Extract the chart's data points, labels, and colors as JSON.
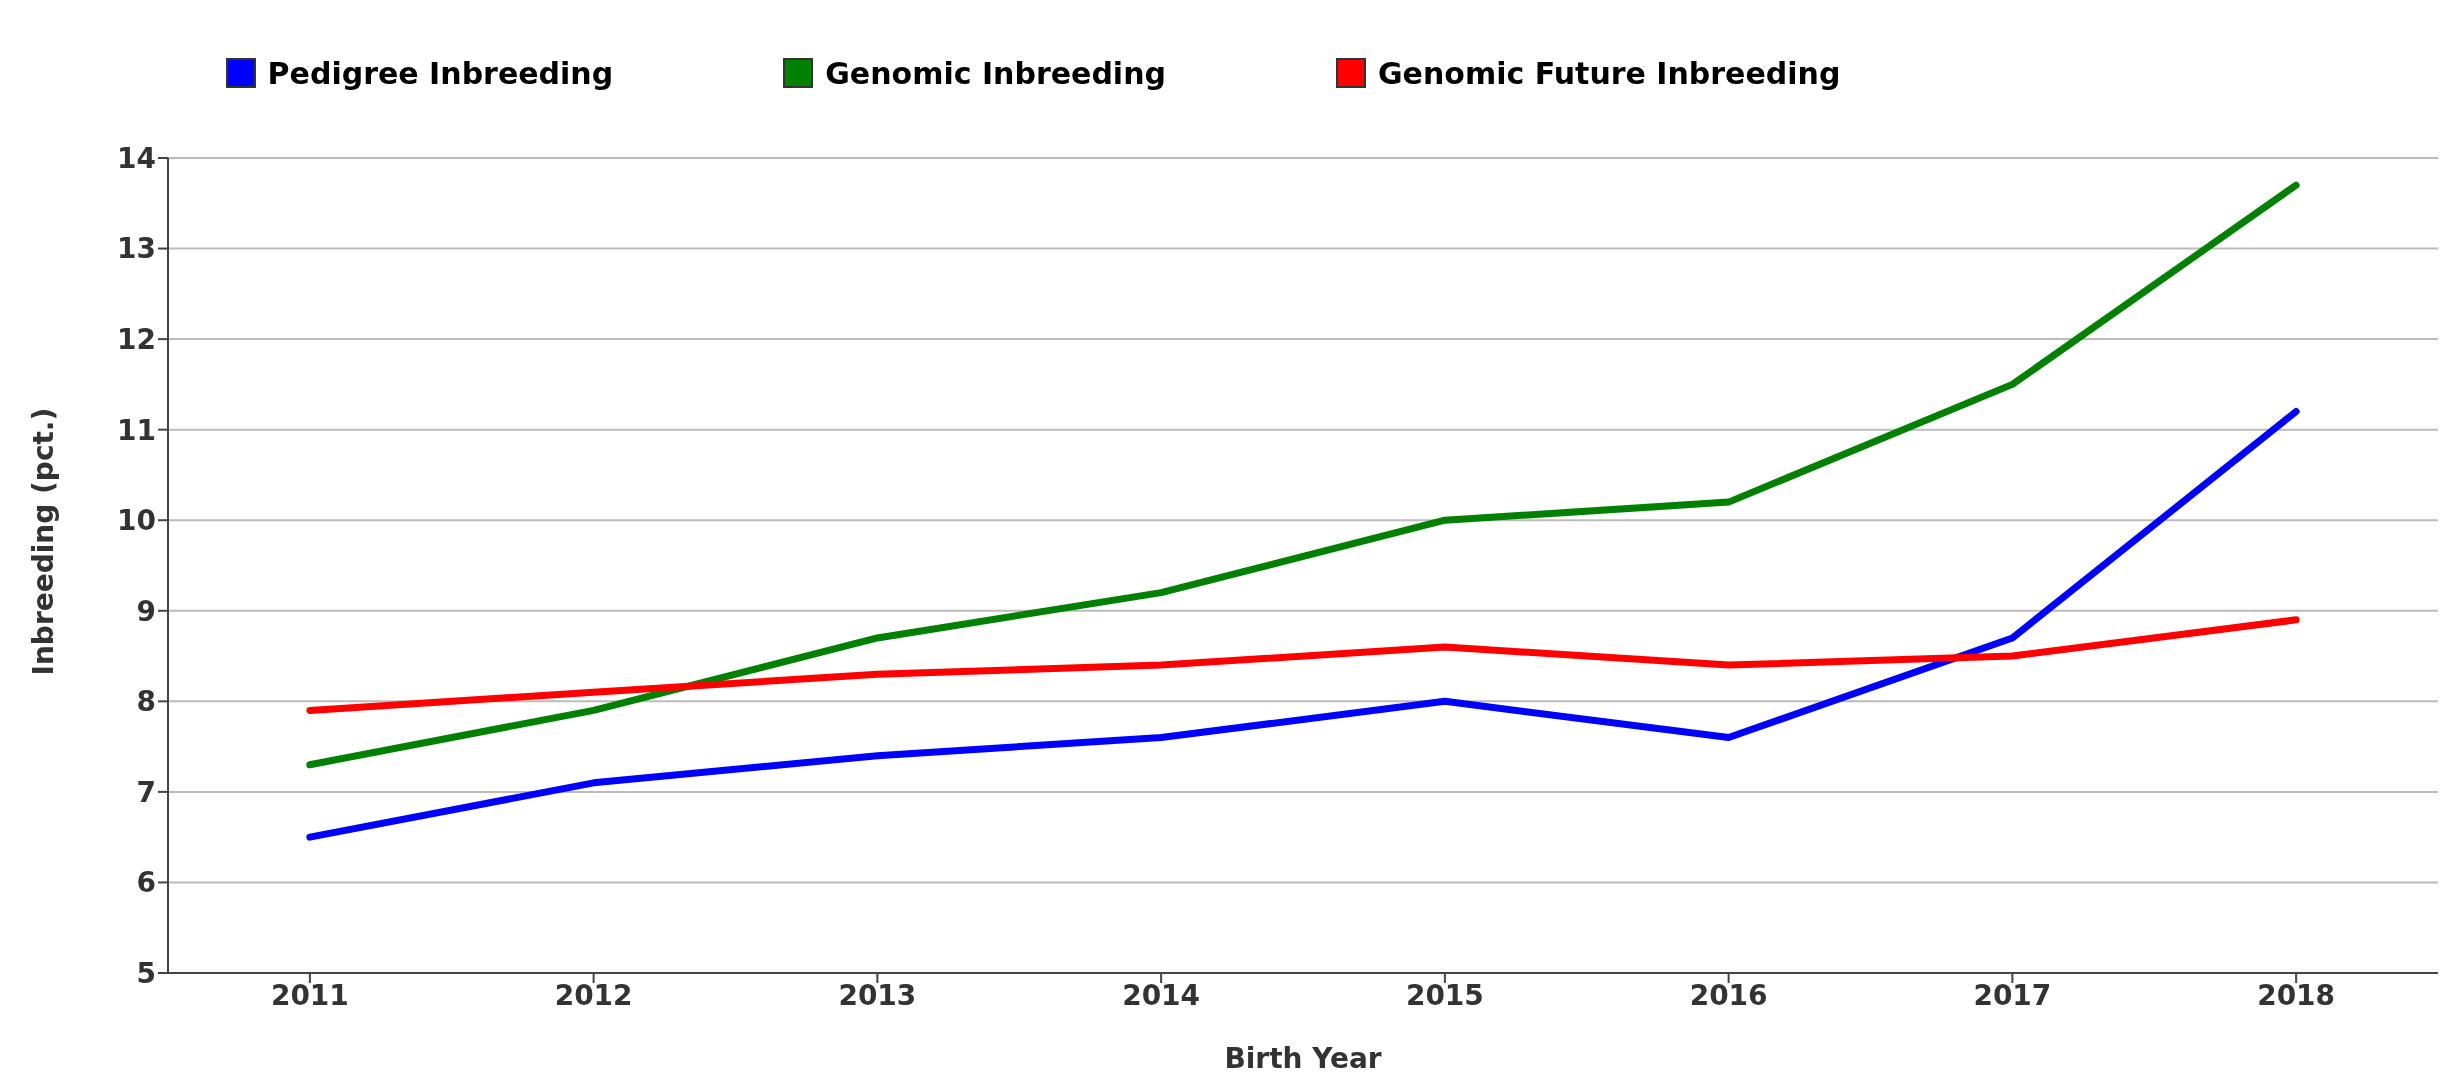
{
  "chart_data": {
    "type": "line",
    "xlabel": "Birth Year",
    "ylabel": "Inbreeding (pct.)",
    "categories": [
      "2011",
      "2012",
      "2013",
      "2014",
      "2015",
      "2016",
      "2017",
      "2018"
    ],
    "series": [
      {
        "name": "Pedigree Inbreeding",
        "color": "#0000ff",
        "values": [
          6.5,
          7.1,
          7.4,
          7.6,
          8.0,
          7.6,
          8.7,
          11.2
        ]
      },
      {
        "name": "Genomic Inbreeding",
        "color": "#008000",
        "values": [
          7.3,
          7.9,
          8.7,
          9.2,
          10.0,
          10.2,
          11.5,
          13.7
        ]
      },
      {
        "name": "Genomic Future Inbreeding",
        "color": "#ff0000",
        "values": [
          7.9,
          8.1,
          8.3,
          8.4,
          8.6,
          8.4,
          8.5,
          8.9
        ]
      }
    ],
    "ylim": [
      5,
      14
    ],
    "yticks": [
      5,
      6,
      7,
      8,
      9,
      10,
      11,
      12,
      13,
      14
    ],
    "grid": "y",
    "legend": "top"
  }
}
